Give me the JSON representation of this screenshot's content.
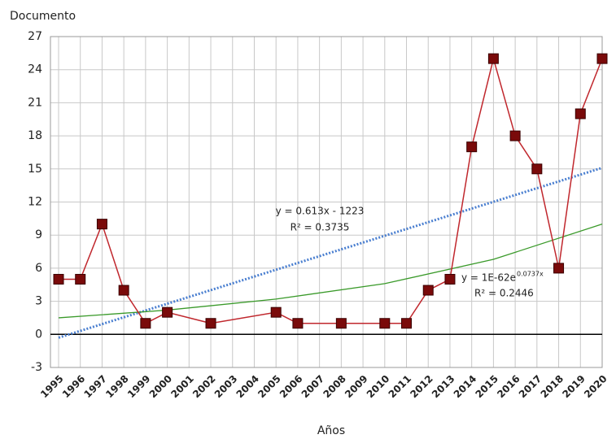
{
  "chart_data": {
    "type": "line",
    "y_label": "Documento",
    "x_label": "Años",
    "x": [
      1995,
      1996,
      1997,
      1998,
      1999,
      2000,
      2002,
      2005,
      2006,
      2008,
      2010,
      2011,
      2012,
      2013,
      2014,
      2015,
      2016,
      2017,
      2018,
      2019,
      2020
    ],
    "series": [
      {
        "color": "#c0272d",
        "marker_color": "#7a0a0a",
        "values": [
          5,
          5,
          10,
          4,
          1,
          2,
          1,
          2,
          1,
          1,
          1,
          1,
          4,
          5,
          17,
          25,
          18,
          15,
          6,
          20,
          25
        ]
      }
    ],
    "trendlines": [
      {
        "color": "#4a7fd0",
        "style": "dotted",
        "x": [
          1995,
          2020
        ],
        "values": [
          -0.3,
          15.1
        ]
      },
      {
        "color": "#3a9a2a",
        "style": "solid",
        "x": [
          1995,
          2000,
          2005,
          2010,
          2015,
          2020
        ],
        "values": [
          1.5,
          2.2,
          3.2,
          4.6,
          6.8,
          10
        ]
      }
    ],
    "annotations": [
      "y = 0.613x - 1223",
      "R² = 0.3735",
      "y = 1E-62e",
      "0.0737x",
      "R² = 0.2446"
    ],
    "xlim": [
      1995,
      2020
    ],
    "xticks": [
      1995,
      1996,
      1997,
      1998,
      1999,
      2000,
      2001,
      2002,
      2003,
      2004,
      2005,
      2006,
      2007,
      2008,
      2009,
      2010,
      2011,
      2012,
      2013,
      2014,
      2015,
      2016,
      2017,
      2018,
      2019,
      2020
    ],
    "ylim": [
      -3,
      27
    ],
    "yticks": [
      -3,
      0,
      3,
      6,
      9,
      12,
      15,
      18,
      21,
      24,
      27
    ],
    "grid": true
  }
}
